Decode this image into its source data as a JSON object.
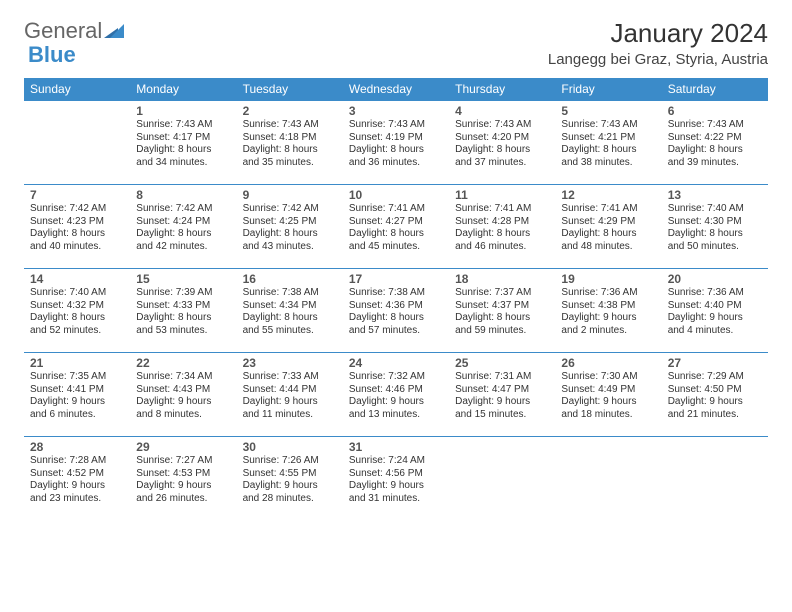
{
  "brand": {
    "part1": "General",
    "part2": "Blue"
  },
  "title": "January 2024",
  "location": "Langegg bei Graz, Styria, Austria",
  "colors": {
    "header_bg": "#3b8bc9",
    "header_text": "#ffffff",
    "border": "#3b8bc9"
  },
  "weekdays": [
    "Sunday",
    "Monday",
    "Tuesday",
    "Wednesday",
    "Thursday",
    "Friday",
    "Saturday"
  ],
  "weeks": [
    [
      null,
      {
        "n": "1",
        "sr": "Sunrise: 7:43 AM",
        "ss": "Sunset: 4:17 PM",
        "d1": "Daylight: 8 hours",
        "d2": "and 34 minutes."
      },
      {
        "n": "2",
        "sr": "Sunrise: 7:43 AM",
        "ss": "Sunset: 4:18 PM",
        "d1": "Daylight: 8 hours",
        "d2": "and 35 minutes."
      },
      {
        "n": "3",
        "sr": "Sunrise: 7:43 AM",
        "ss": "Sunset: 4:19 PM",
        "d1": "Daylight: 8 hours",
        "d2": "and 36 minutes."
      },
      {
        "n": "4",
        "sr": "Sunrise: 7:43 AM",
        "ss": "Sunset: 4:20 PM",
        "d1": "Daylight: 8 hours",
        "d2": "and 37 minutes."
      },
      {
        "n": "5",
        "sr": "Sunrise: 7:43 AM",
        "ss": "Sunset: 4:21 PM",
        "d1": "Daylight: 8 hours",
        "d2": "and 38 minutes."
      },
      {
        "n": "6",
        "sr": "Sunrise: 7:43 AM",
        "ss": "Sunset: 4:22 PM",
        "d1": "Daylight: 8 hours",
        "d2": "and 39 minutes."
      }
    ],
    [
      {
        "n": "7",
        "sr": "Sunrise: 7:42 AM",
        "ss": "Sunset: 4:23 PM",
        "d1": "Daylight: 8 hours",
        "d2": "and 40 minutes."
      },
      {
        "n": "8",
        "sr": "Sunrise: 7:42 AM",
        "ss": "Sunset: 4:24 PM",
        "d1": "Daylight: 8 hours",
        "d2": "and 42 minutes."
      },
      {
        "n": "9",
        "sr": "Sunrise: 7:42 AM",
        "ss": "Sunset: 4:25 PM",
        "d1": "Daylight: 8 hours",
        "d2": "and 43 minutes."
      },
      {
        "n": "10",
        "sr": "Sunrise: 7:41 AM",
        "ss": "Sunset: 4:27 PM",
        "d1": "Daylight: 8 hours",
        "d2": "and 45 minutes."
      },
      {
        "n": "11",
        "sr": "Sunrise: 7:41 AM",
        "ss": "Sunset: 4:28 PM",
        "d1": "Daylight: 8 hours",
        "d2": "and 46 minutes."
      },
      {
        "n": "12",
        "sr": "Sunrise: 7:41 AM",
        "ss": "Sunset: 4:29 PM",
        "d1": "Daylight: 8 hours",
        "d2": "and 48 minutes."
      },
      {
        "n": "13",
        "sr": "Sunrise: 7:40 AM",
        "ss": "Sunset: 4:30 PM",
        "d1": "Daylight: 8 hours",
        "d2": "and 50 minutes."
      }
    ],
    [
      {
        "n": "14",
        "sr": "Sunrise: 7:40 AM",
        "ss": "Sunset: 4:32 PM",
        "d1": "Daylight: 8 hours",
        "d2": "and 52 minutes."
      },
      {
        "n": "15",
        "sr": "Sunrise: 7:39 AM",
        "ss": "Sunset: 4:33 PM",
        "d1": "Daylight: 8 hours",
        "d2": "and 53 minutes."
      },
      {
        "n": "16",
        "sr": "Sunrise: 7:38 AM",
        "ss": "Sunset: 4:34 PM",
        "d1": "Daylight: 8 hours",
        "d2": "and 55 minutes."
      },
      {
        "n": "17",
        "sr": "Sunrise: 7:38 AM",
        "ss": "Sunset: 4:36 PM",
        "d1": "Daylight: 8 hours",
        "d2": "and 57 minutes."
      },
      {
        "n": "18",
        "sr": "Sunrise: 7:37 AM",
        "ss": "Sunset: 4:37 PM",
        "d1": "Daylight: 8 hours",
        "d2": "and 59 minutes."
      },
      {
        "n": "19",
        "sr": "Sunrise: 7:36 AM",
        "ss": "Sunset: 4:38 PM",
        "d1": "Daylight: 9 hours",
        "d2": "and 2 minutes."
      },
      {
        "n": "20",
        "sr": "Sunrise: 7:36 AM",
        "ss": "Sunset: 4:40 PM",
        "d1": "Daylight: 9 hours",
        "d2": "and 4 minutes."
      }
    ],
    [
      {
        "n": "21",
        "sr": "Sunrise: 7:35 AM",
        "ss": "Sunset: 4:41 PM",
        "d1": "Daylight: 9 hours",
        "d2": "and 6 minutes."
      },
      {
        "n": "22",
        "sr": "Sunrise: 7:34 AM",
        "ss": "Sunset: 4:43 PM",
        "d1": "Daylight: 9 hours",
        "d2": "and 8 minutes."
      },
      {
        "n": "23",
        "sr": "Sunrise: 7:33 AM",
        "ss": "Sunset: 4:44 PM",
        "d1": "Daylight: 9 hours",
        "d2": "and 11 minutes."
      },
      {
        "n": "24",
        "sr": "Sunrise: 7:32 AM",
        "ss": "Sunset: 4:46 PM",
        "d1": "Daylight: 9 hours",
        "d2": "and 13 minutes."
      },
      {
        "n": "25",
        "sr": "Sunrise: 7:31 AM",
        "ss": "Sunset: 4:47 PM",
        "d1": "Daylight: 9 hours",
        "d2": "and 15 minutes."
      },
      {
        "n": "26",
        "sr": "Sunrise: 7:30 AM",
        "ss": "Sunset: 4:49 PM",
        "d1": "Daylight: 9 hours",
        "d2": "and 18 minutes."
      },
      {
        "n": "27",
        "sr": "Sunrise: 7:29 AM",
        "ss": "Sunset: 4:50 PM",
        "d1": "Daylight: 9 hours",
        "d2": "and 21 minutes."
      }
    ],
    [
      {
        "n": "28",
        "sr": "Sunrise: 7:28 AM",
        "ss": "Sunset: 4:52 PM",
        "d1": "Daylight: 9 hours",
        "d2": "and 23 minutes."
      },
      {
        "n": "29",
        "sr": "Sunrise: 7:27 AM",
        "ss": "Sunset: 4:53 PM",
        "d1": "Daylight: 9 hours",
        "d2": "and 26 minutes."
      },
      {
        "n": "30",
        "sr": "Sunrise: 7:26 AM",
        "ss": "Sunset: 4:55 PM",
        "d1": "Daylight: 9 hours",
        "d2": "and 28 minutes."
      },
      {
        "n": "31",
        "sr": "Sunrise: 7:24 AM",
        "ss": "Sunset: 4:56 PM",
        "d1": "Daylight: 9 hours",
        "d2": "and 31 minutes."
      },
      null,
      null,
      null
    ]
  ]
}
